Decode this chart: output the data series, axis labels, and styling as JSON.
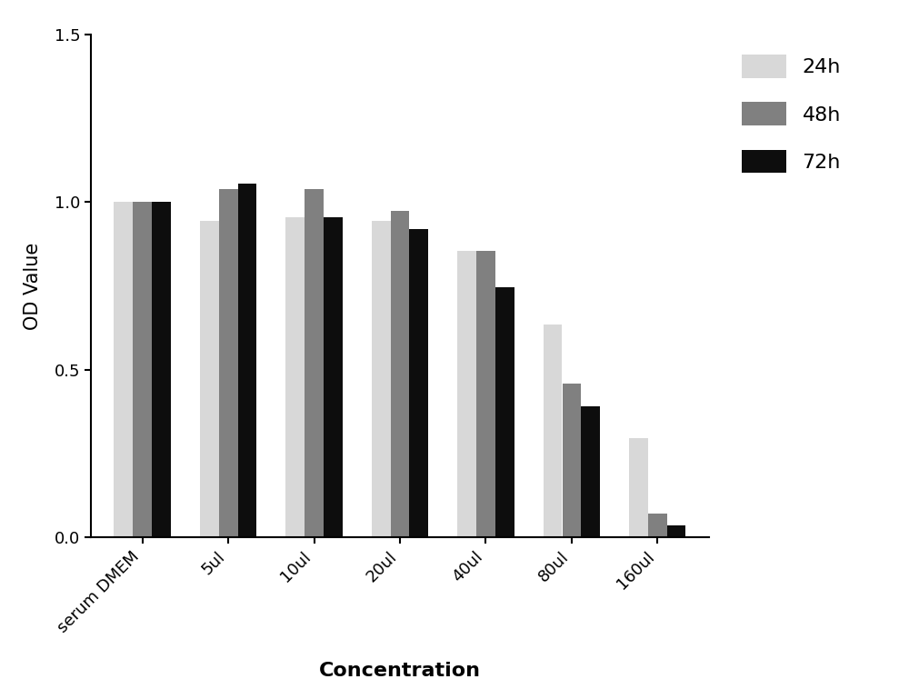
{
  "categories": [
    "serum DMEM",
    "5ul",
    "10ul",
    "20ul",
    "40ul",
    "80ul",
    "160ul"
  ],
  "series": {
    "24h": [
      1.0,
      0.945,
      0.955,
      0.945,
      0.855,
      0.635,
      0.295
    ],
    "48h": [
      1.0,
      1.04,
      1.04,
      0.975,
      0.855,
      0.46,
      0.07
    ],
    "72h": [
      1.0,
      1.055,
      0.955,
      0.92,
      0.745,
      0.39,
      0.035
    ]
  },
  "colors": {
    "24h": "#d8d8d8",
    "48h": "#808080",
    "72h": "#0d0d0d"
  },
  "ylabel": "OD Value",
  "xlabel": "Concentration",
  "ylim": [
    0,
    1.5
  ],
  "yticks": [
    0.0,
    0.5,
    1.0,
    1.5
  ],
  "legend_labels": [
    "24h",
    "48h",
    "72h"
  ],
  "bar_width": 0.22,
  "background_color": "#ffffff",
  "ylabel_fontsize": 15,
  "xlabel_fontsize": 16,
  "tick_fontsize": 13,
  "legend_fontsize": 16
}
